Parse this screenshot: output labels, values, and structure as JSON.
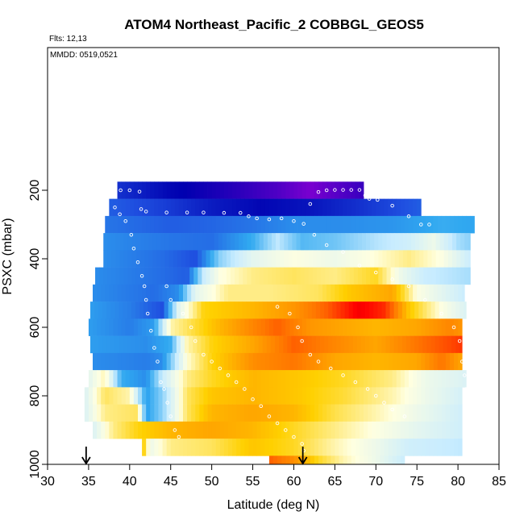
{
  "chart_data": {
    "type": "heatmap",
    "title": "ATOM4 Northeast_Pacific_2 COBBGL_GEOS5",
    "annotations": [
      "Flts: 12,13",
      "MMDD: 0519,0521"
    ],
    "xlabel": "Latitude (deg N)",
    "ylabel": "PSXC (mbar)",
    "xlim": [
      30,
      85
    ],
    "ylim": [
      1000,
      0
    ],
    "x_ticks": [
      30,
      35,
      40,
      45,
      50,
      55,
      60,
      65,
      70,
      75,
      80,
      85
    ],
    "y_ticks": [
      200,
      400,
      600,
      800,
      1000
    ],
    "grid": false,
    "legend": "none",
    "color_scale": [
      "#7a00d0",
      "#0000b0",
      "#1f4fe0",
      "#30a8f0",
      "#c8ecff",
      "#ffffe0",
      "#ffd000",
      "#ff7800",
      "#ff0000",
      "#c00000"
    ],
    "arrow_markers": [
      {
        "lat": 34.7,
        "pressure": 1000
      },
      {
        "lat": 61.1,
        "pressure": 1000
      }
    ],
    "layers": [
      {
        "p": [
          175,
          225
        ],
        "lat": [
          38.5,
          68.5
        ],
        "stops": [
          [
            38.5,
            0.18
          ],
          [
            45,
            0.12
          ],
          [
            52,
            0.08
          ],
          [
            58,
            0.04
          ],
          [
            62,
            0.0
          ],
          [
            65,
            0.03
          ],
          [
            68.5,
            0.06
          ]
        ]
      },
      {
        "p": [
          225,
          275
        ],
        "lat": [
          37.5,
          75.5
        ],
        "stops": [
          [
            37.5,
            0.24
          ],
          [
            44,
            0.2
          ],
          [
            50,
            0.15
          ],
          [
            56,
            0.12
          ],
          [
            62,
            0.14
          ],
          [
            68,
            0.18
          ],
          [
            75.5,
            0.24
          ]
        ]
      },
      {
        "p": [
          275,
          325
        ],
        "lat": [
          37,
          82
        ],
        "stops": [
          [
            37,
            0.27
          ],
          [
            45,
            0.24
          ],
          [
            50,
            0.25
          ],
          [
            55,
            0.27
          ],
          [
            60,
            0.3
          ],
          [
            66,
            0.3
          ],
          [
            72,
            0.31
          ],
          [
            78,
            0.34
          ],
          [
            82,
            0.33
          ]
        ]
      },
      {
        "p": [
          325,
          375
        ],
        "lat": [
          36.8,
          81.5
        ],
        "stops": [
          [
            36.8,
            0.3
          ],
          [
            45,
            0.27
          ],
          [
            50,
            0.26
          ],
          [
            55,
            0.34
          ],
          [
            58,
            0.44
          ],
          [
            61,
            0.36
          ],
          [
            65,
            0.38
          ],
          [
            70,
            0.43
          ],
          [
            74,
            0.46
          ],
          [
            77,
            0.52
          ],
          [
            80,
            0.42
          ],
          [
            81.5,
            0.4
          ]
        ]
      },
      {
        "p": [
          375,
          425
        ],
        "lat": [
          36.8,
          81.5
        ],
        "stops": [
          [
            36.8,
            0.3
          ],
          [
            44,
            0.26
          ],
          [
            48,
            0.22
          ],
          [
            51,
            0.4
          ],
          [
            55,
            0.5
          ],
          [
            60,
            0.55
          ],
          [
            65,
            0.52
          ],
          [
            70,
            0.56
          ],
          [
            74,
            0.6
          ],
          [
            78,
            0.55
          ],
          [
            81.5,
            0.45
          ]
        ]
      },
      {
        "p": [
          425,
          475
        ],
        "lat": [
          35.8,
          81.5
        ],
        "stops": [
          [
            35.8,
            0.3
          ],
          [
            44,
            0.26
          ],
          [
            47,
            0.24
          ],
          [
            49,
            0.45
          ],
          [
            51,
            0.55
          ],
          [
            55,
            0.6
          ],
          [
            60,
            0.62
          ],
          [
            65,
            0.6
          ],
          [
            70,
            0.65
          ],
          [
            73,
            0.52
          ],
          [
            76,
            0.45
          ],
          [
            81.5,
            0.42
          ]
        ]
      },
      {
        "p": [
          475,
          525
        ],
        "lat": [
          35.5,
          80.8
        ],
        "stops": [
          [
            35.5,
            0.3
          ],
          [
            43,
            0.26
          ],
          [
            46,
            0.3
          ],
          [
            48,
            0.5
          ],
          [
            52,
            0.6
          ],
          [
            57,
            0.6
          ],
          [
            63,
            0.62
          ],
          [
            67,
            0.68
          ],
          [
            72,
            0.72
          ],
          [
            75,
            0.55
          ],
          [
            80.8,
            0.45
          ]
        ]
      },
      {
        "p": [
          525,
          575
        ],
        "lat": [
          35.2,
          81
        ],
        "stops": [
          [
            35.2,
            0.32
          ],
          [
            40,
            0.28
          ],
          [
            44,
            0.22
          ],
          [
            46,
            0.5
          ],
          [
            49,
            0.66
          ],
          [
            55,
            0.7
          ],
          [
            60,
            0.74
          ],
          [
            64,
            0.8
          ],
          [
            68,
            0.9
          ],
          [
            71,
            0.85
          ],
          [
            74,
            0.68
          ],
          [
            78,
            0.55
          ],
          [
            81,
            0.48
          ]
        ]
      },
      {
        "p": [
          575,
          625
        ],
        "lat": [
          35,
          80.5
        ],
        "stops": [
          [
            35,
            0.32
          ],
          [
            40,
            0.28
          ],
          [
            43,
            0.32
          ],
          [
            45,
            0.58
          ],
          [
            47,
            0.62
          ],
          [
            51,
            0.7
          ],
          [
            55,
            0.76
          ],
          [
            58,
            0.8
          ],
          [
            62,
            0.74
          ],
          [
            66,
            0.72
          ],
          [
            70,
            0.7
          ],
          [
            75,
            0.72
          ],
          [
            79,
            0.76
          ],
          [
            80.5,
            0.74
          ]
        ]
      },
      {
        "p": [
          625,
          675
        ],
        "lat": [
          35.2,
          80.5
        ],
        "stops": [
          [
            35.2,
            0.32
          ],
          [
            42,
            0.3
          ],
          [
            45,
            0.34
          ],
          [
            47,
            0.58
          ],
          [
            50,
            0.66
          ],
          [
            55,
            0.72
          ],
          [
            60,
            0.8
          ],
          [
            65,
            0.76
          ],
          [
            70,
            0.72
          ],
          [
            75,
            0.78
          ],
          [
            79,
            0.82
          ],
          [
            80.5,
            0.84
          ]
        ]
      },
      {
        "p": [
          675,
          725
        ],
        "lat": [
          35.5,
          80.5
        ],
        "stops": [
          [
            35.5,
            0.3
          ],
          [
            42,
            0.28
          ],
          [
            44,
            0.3
          ],
          [
            47,
            0.56
          ],
          [
            50,
            0.66
          ],
          [
            55,
            0.75
          ],
          [
            60,
            0.78
          ],
          [
            65,
            0.72
          ],
          [
            70,
            0.7
          ],
          [
            75,
            0.72
          ],
          [
            78,
            0.78
          ],
          [
            80.5,
            0.72
          ]
        ]
      },
      {
        "p": [
          725,
          775
        ],
        "lat": [
          35,
          81
        ],
        "stops": [
          [
            35,
            0.5
          ],
          [
            37,
            0.58
          ],
          [
            39,
            0.34
          ],
          [
            42,
            0.3
          ],
          [
            44,
            0.45
          ],
          [
            47,
            0.6
          ],
          [
            50,
            0.65
          ],
          [
            55,
            0.7
          ],
          [
            60,
            0.68
          ],
          [
            66,
            0.65
          ],
          [
            72,
            0.6
          ],
          [
            76,
            0.52
          ],
          [
            81,
            0.48
          ]
        ]
      },
      {
        "p": [
          775,
          825
        ],
        "lat": [
          34.5,
          80.5
        ],
        "stops": [
          [
            34.5,
            0.48
          ],
          [
            37,
            0.62
          ],
          [
            40,
            0.58
          ],
          [
            42,
            0.32
          ],
          [
            44,
            0.4
          ],
          [
            47,
            0.62
          ],
          [
            50,
            0.68
          ],
          [
            55,
            0.7
          ],
          [
            60,
            0.68
          ],
          [
            66,
            0.64
          ],
          [
            72,
            0.58
          ],
          [
            76,
            0.52
          ],
          [
            80.5,
            0.47
          ]
        ]
      },
      {
        "p": [
          825,
          875
        ],
        "lat": [
          34.5,
          80.5
        ],
        "stops": [
          [
            34.5,
            0.48
          ],
          [
            37,
            0.6
          ],
          [
            41,
            0.62
          ],
          [
            42,
            0.32
          ],
          [
            44,
            0.4
          ],
          [
            47,
            0.62
          ],
          [
            50,
            0.7
          ],
          [
            55,
            0.72
          ],
          [
            60,
            0.7
          ],
          [
            65,
            0.63
          ],
          [
            70,
            0.58
          ],
          [
            75,
            0.52
          ],
          [
            80.5,
            0.46
          ]
        ]
      },
      {
        "p": [
          875,
          925
        ],
        "lat": [
          35.5,
          80.5
        ],
        "stops": [
          [
            35.5,
            0.48
          ],
          [
            38,
            0.6
          ],
          [
            41,
            0.66
          ],
          [
            45,
            0.7
          ],
          [
            50,
            0.72
          ],
          [
            55,
            0.7
          ],
          [
            60,
            0.65
          ],
          [
            65,
            0.6
          ],
          [
            70,
            0.55
          ],
          [
            75,
            0.5
          ],
          [
            80.5,
            0.46
          ]
        ]
      },
      {
        "p": [
          925,
          975
        ],
        "lat": [
          41.5,
          80.5
        ],
        "stops": [
          [
            41.5,
            0.7
          ],
          [
            42.5,
            0.52
          ],
          [
            45,
            0.6
          ],
          [
            50,
            0.62
          ],
          [
            55,
            0.68
          ],
          [
            60,
            0.65
          ],
          [
            65,
            0.58
          ],
          [
            70,
            0.52
          ],
          [
            74,
            0.46
          ],
          [
            80.5,
            0.44
          ]
        ]
      },
      {
        "p": [
          975,
          1000
        ],
        "lat": [
          57,
          73.5
        ],
        "stops": [
          [
            57,
            0.8
          ],
          [
            60,
            0.75
          ],
          [
            63,
            0.65
          ],
          [
            66,
            0.58
          ],
          [
            70,
            0.52
          ],
          [
            73.5,
            0.45
          ]
        ]
      }
    ],
    "flight_track": [
      [
        38.9,
        200
      ],
      [
        40,
        200
      ],
      [
        41.2,
        204
      ],
      [
        41.4,
        255
      ],
      [
        42,
        262
      ],
      [
        44.5,
        265
      ],
      [
        47,
        265
      ],
      [
        49,
        265
      ],
      [
        51.5,
        266
      ],
      [
        53.5,
        266
      ],
      [
        54.5,
        276
      ],
      [
        55.5,
        282
      ],
      [
        57,
        285
      ],
      [
        58.5,
        282
      ],
      [
        60,
        290
      ],
      [
        61.2,
        298
      ],
      [
        62,
        240
      ],
      [
        63,
        205
      ],
      [
        64,
        200
      ],
      [
        65,
        199
      ],
      [
        66,
        199
      ],
      [
        67,
        199
      ],
      [
        68,
        199
      ],
      [
        68.7,
        215
      ],
      [
        69.2,
        225
      ],
      [
        70.2,
        228
      ],
      [
        72,
        245
      ],
      [
        74,
        276
      ],
      [
        75.5,
        300
      ],
      [
        76.5,
        300
      ],
      [
        38.2,
        250
      ],
      [
        38.8,
        270
      ],
      [
        39.5,
        290
      ],
      [
        40.2,
        330
      ],
      [
        40.5,
        370
      ],
      [
        41,
        410
      ],
      [
        41.5,
        450
      ],
      [
        41.8,
        480
      ],
      [
        42,
        520
      ],
      [
        42.2,
        560
      ],
      [
        42.6,
        610
      ],
      [
        43,
        660
      ],
      [
        43.4,
        700
      ],
      [
        43.8,
        760
      ],
      [
        44.2,
        780
      ],
      [
        44.6,
        820
      ],
      [
        45,
        860
      ],
      [
        45.5,
        900
      ],
      [
        46,
        920
      ],
      [
        44.5,
        480
      ],
      [
        45,
        520
      ],
      [
        46.5,
        560
      ],
      [
        47.5,
        600
      ],
      [
        48,
        640
      ],
      [
        49,
        680
      ],
      [
        50,
        700
      ],
      [
        51,
        720
      ],
      [
        52,
        740
      ],
      [
        53,
        760
      ],
      [
        54,
        780
      ],
      [
        55,
        810
      ],
      [
        56,
        830
      ],
      [
        57,
        860
      ],
      [
        58,
        880
      ],
      [
        59,
        900
      ],
      [
        60,
        920
      ],
      [
        61,
        940
      ],
      [
        61.2,
        960
      ],
      [
        58,
        540
      ],
      [
        59.5,
        560
      ],
      [
        60.5,
        600
      ],
      [
        61,
        640
      ],
      [
        62,
        680
      ],
      [
        63,
        700
      ],
      [
        64.5,
        720
      ],
      [
        66,
        740
      ],
      [
        67.5,
        760
      ],
      [
        69,
        780
      ],
      [
        70,
        800
      ],
      [
        71,
        820
      ],
      [
        72,
        840
      ],
      [
        73.5,
        860
      ],
      [
        62.5,
        330
      ],
      [
        64,
        360
      ],
      [
        66,
        380
      ],
      [
        68,
        420
      ],
      [
        70,
        440
      ],
      [
        72,
        460
      ],
      [
        74,
        480
      ],
      [
        76,
        520
      ],
      [
        78,
        560
      ],
      [
        79.5,
        600
      ],
      [
        80.2,
        640
      ],
      [
        80.5,
        700
      ],
      [
        80.8,
        740
      ],
      [
        81,
        780
      ]
    ]
  }
}
